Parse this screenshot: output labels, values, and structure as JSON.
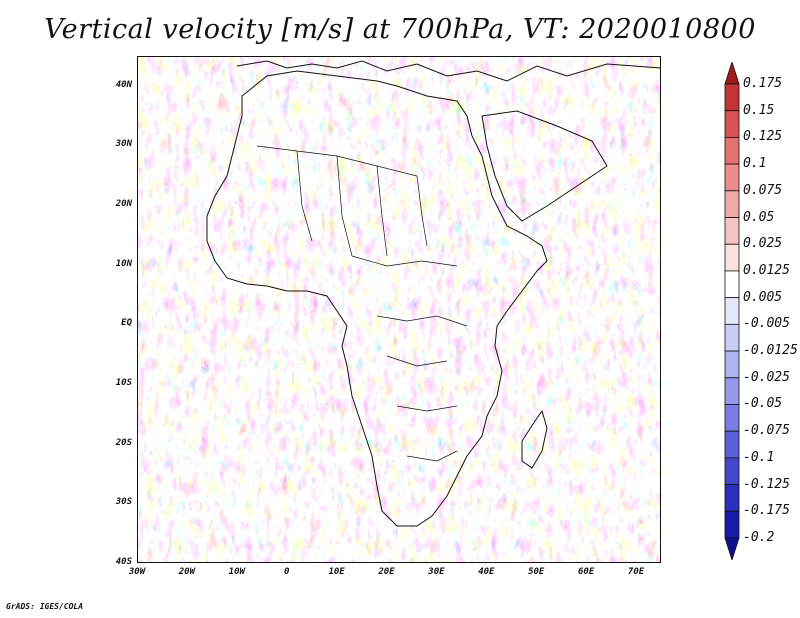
{
  "title": "Vertical velocity [m/s] at 700hPa, VT: 2020010800",
  "credit": "GrADS: IGES/COLA",
  "map": {
    "lon_range": [
      -30,
      75
    ],
    "lat_range": [
      -40,
      45
    ],
    "lat_ticks": [
      "40N",
      "30N",
      "20N",
      "10N",
      "EQ",
      "10S",
      "20S",
      "30S",
      "40S"
    ],
    "lon_ticks": [
      "30W",
      "20W",
      "10W",
      "0",
      "10E",
      "20E",
      "30E",
      "40E",
      "50E",
      "60E",
      "70E"
    ]
  },
  "colorbar": {
    "levels": [
      "0.175",
      "0.15",
      "0.125",
      "0.1",
      "0.075",
      "0.05",
      "0.025",
      "0.0125",
      "0.005",
      "-0.005",
      "-0.0125",
      "-0.025",
      "-0.05",
      "-0.075",
      "-0.1",
      "-0.125",
      "-0.175",
      "-0.2"
    ],
    "colors": [
      "#a01a1a",
      "#c43434",
      "#d95252",
      "#e47070",
      "#ec8c8c",
      "#f2a8a8",
      "#f7c4c4",
      "#fbe0e0",
      "#ffffff",
      "#e6e6fb",
      "#cccdf7",
      "#b2b3f2",
      "#9698ec",
      "#7a7de4",
      "#5e60da",
      "#4446cc",
      "#2c2ebc",
      "#1a1aa6",
      "#10108c"
    ]
  }
}
